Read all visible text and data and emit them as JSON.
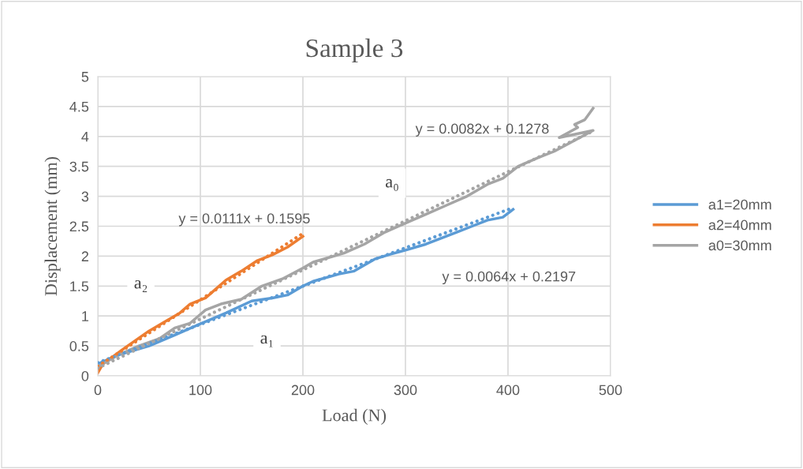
{
  "chart_data": {
    "type": "line",
    "title": "Sample 3",
    "xlabel": "Load (N)",
    "ylabel": "Displacement (mm)",
    "xlim": [
      0,
      500
    ],
    "xticks": [
      0,
      100,
      200,
      300,
      400,
      500
    ],
    "ylim": [
      0,
      5
    ],
    "yticks": [
      0,
      0.5,
      1,
      1.5,
      2,
      2.5,
      3,
      3.5,
      4,
      4.5,
      5
    ],
    "grid": true,
    "legend": "right",
    "marker": "none",
    "series": [
      {
        "name": "a1=20mm",
        "color": "#5b9bd5",
        "line_style": "solid",
        "x": [
          0,
          20,
          50,
          75,
          100,
          125,
          150,
          170,
          185,
          200,
          210,
          235,
          250,
          270,
          285,
          300,
          320,
          335,
          350,
          365,
          380,
          395,
          405
        ],
        "values": [
          0.2,
          0.35,
          0.5,
          0.68,
          0.87,
          1.05,
          1.25,
          1.3,
          1.35,
          1.5,
          1.58,
          1.7,
          1.75,
          1.95,
          2.03,
          2.1,
          2.2,
          2.3,
          2.4,
          2.5,
          2.6,
          2.65,
          2.78
        ]
      },
      {
        "name": "a2=40mm",
        "color": "#ed7d31",
        "line_style": "solid",
        "x": [
          0,
          5,
          25,
          50,
          65,
          80,
          90,
          105,
          115,
          125,
          140,
          155,
          170,
          185,
          200
        ],
        "values": [
          0.05,
          0.2,
          0.45,
          0.75,
          0.9,
          1.05,
          1.2,
          1.3,
          1.45,
          1.6,
          1.75,
          1.92,
          2.02,
          2.15,
          2.33
        ]
      },
      {
        "name": "a0=30mm",
        "color": "#a5a5a5",
        "line_style": "solid",
        "x": [
          0,
          20,
          40,
          60,
          75,
          90,
          105,
          120,
          140,
          160,
          180,
          200,
          210,
          240,
          260,
          280,
          300,
          320,
          340,
          360,
          380,
          395,
          410,
          430,
          445,
          483,
          450,
          468,
          465,
          475,
          483
        ],
        "values": [
          0.15,
          0.35,
          0.5,
          0.62,
          0.8,
          0.88,
          1.1,
          1.2,
          1.28,
          1.5,
          1.62,
          1.8,
          1.9,
          2.05,
          2.2,
          2.4,
          2.55,
          2.7,
          2.85,
          3.0,
          3.2,
          3.3,
          3.5,
          3.65,
          3.75,
          4.1,
          3.98,
          4.15,
          4.2,
          4.28,
          4.47
        ]
      },
      {
        "color": "#5b9bd5",
        "line_style": "dotted",
        "x": [
          0,
          405
        ],
        "values": [
          0.22,
          2.81
        ]
      },
      {
        "color": "#ed7d31",
        "line_style": "dotted",
        "x": [
          0,
          200
        ],
        "values": [
          0.16,
          2.38
        ]
      },
      {
        "color": "#a5a5a5",
        "line_style": "dotted",
        "x": [
          0,
          483
        ],
        "values": [
          0.13,
          4.09
        ]
      }
    ],
    "annotations": [
      "y = 0.0111x + 0.1595",
      "y = 0.0064x + 0.2197",
      "y = 0.0082x + 0.1278",
      {
        "text": "a₀",
        "x": 287,
        "y": 3.22
      },
      {
        "text": "a₁",
        "x": 165,
        "y": 0.61
      },
      {
        "text": "a₂",
        "x": 42,
        "y": 1.53
      }
    ]
  }
}
